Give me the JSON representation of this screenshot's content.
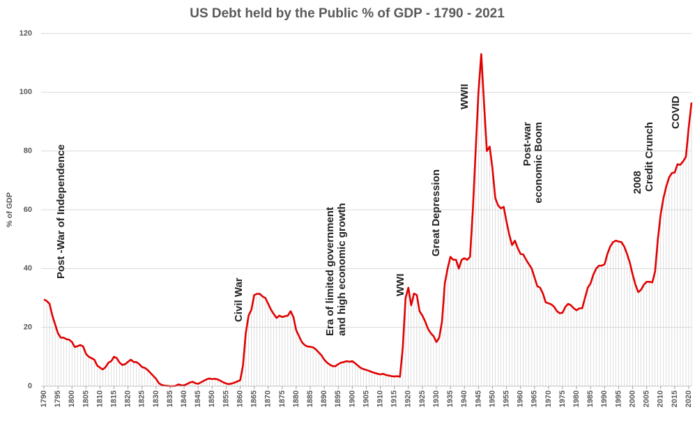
{
  "chart_data": {
    "type": "line",
    "title": "US Debt held by the Public % of GDP - 1790 - 2021",
    "y_label": "% of GDP",
    "x": [
      1790,
      1791,
      1792,
      1793,
      1794,
      1795,
      1796,
      1797,
      1798,
      1799,
      1800,
      1801,
      1802,
      1803,
      1804,
      1805,
      1806,
      1807,
      1808,
      1809,
      1810,
      1811,
      1812,
      1813,
      1814,
      1815,
      1816,
      1817,
      1818,
      1819,
      1820,
      1821,
      1822,
      1823,
      1824,
      1825,
      1826,
      1827,
      1828,
      1829,
      1830,
      1831,
      1832,
      1833,
      1834,
      1835,
      1836,
      1837,
      1838,
      1839,
      1840,
      1841,
      1842,
      1843,
      1844,
      1845,
      1846,
      1847,
      1848,
      1849,
      1850,
      1851,
      1852,
      1853,
      1854,
      1855,
      1856,
      1857,
      1858,
      1859,
      1860,
      1861,
      1862,
      1863,
      1864,
      1865,
      1866,
      1867,
      1868,
      1869,
      1870,
      1871,
      1872,
      1873,
      1874,
      1875,
      1876,
      1877,
      1878,
      1879,
      1880,
      1881,
      1882,
      1883,
      1884,
      1885,
      1886,
      1887,
      1888,
      1889,
      1890,
      1891,
      1892,
      1893,
      1894,
      1895,
      1896,
      1897,
      1898,
      1899,
      1900,
      1901,
      1902,
      1903,
      1904,
      1905,
      1906,
      1907,
      1908,
      1909,
      1910,
      1911,
      1912,
      1913,
      1914,
      1915,
      1916,
      1917,
      1918,
      1919,
      1920,
      1921,
      1922,
      1923,
      1924,
      1925,
      1926,
      1927,
      1928,
      1929,
      1930,
      1931,
      1932,
      1933,
      1934,
      1935,
      1936,
      1937,
      1938,
      1939,
      1940,
      1941,
      1942,
      1943,
      1944,
      1945,
      1946,
      1947,
      1948,
      1949,
      1950,
      1951,
      1952,
      1953,
      1954,
      1955,
      1956,
      1957,
      1958,
      1959,
      1960,
      1961,
      1962,
      1963,
      1964,
      1965,
      1966,
      1967,
      1968,
      1969,
      1970,
      1971,
      1972,
      1973,
      1974,
      1975,
      1976,
      1977,
      1978,
      1979,
      1980,
      1981,
      1982,
      1983,
      1984,
      1985,
      1986,
      1987,
      1988,
      1989,
      1990,
      1991,
      1992,
      1993,
      1994,
      1995,
      1996,
      1997,
      1998,
      1999,
      2000,
      2001,
      2002,
      2003,
      2004,
      2005,
      2006,
      2007,
      2008,
      2009,
      2010,
      2011,
      2012,
      2013,
      2014,
      2015,
      2016,
      2017,
      2018,
      2019,
      2020,
      2021
    ],
    "series": [
      {
        "name": "Debt held by the Public % of GDP",
        "color": "#e00000",
        "values": [
          29.5,
          29,
          28,
          24,
          21,
          18,
          16.5,
          16.5,
          16,
          15.8,
          15,
          13.3,
          13.6,
          14,
          13.5,
          11,
          10,
          9.5,
          9,
          7,
          6.3,
          5.7,
          6.5,
          8,
          8.5,
          10,
          9.5,
          8,
          7.2,
          7.5,
          8.3,
          9,
          8.2,
          8.2,
          7.5,
          6.5,
          6.2,
          5.5,
          4.5,
          3.5,
          2.5,
          1,
          0.4,
          0.2,
          0.1,
          0,
          0,
          0.1,
          0.6,
          0.3,
          0.3,
          0.7,
          1.2,
          1.5,
          1,
          0.8,
          1.3,
          1.8,
          2.3,
          2.6,
          2.4,
          2.5,
          2.3,
          1.8,
          1.3,
          0.9,
          0.7,
          0.9,
          1.2,
          1.6,
          2,
          7,
          18,
          24,
          26,
          31,
          31.4,
          31.4,
          30.5,
          30,
          28,
          26,
          24.5,
          23.2,
          24,
          23.5,
          23.8,
          24,
          25.5,
          23.5,
          19,
          17,
          15,
          14,
          13.5,
          13.4,
          13.2,
          12.5,
          11.5,
          10.5,
          9,
          8,
          7.3,
          6.8,
          6.8,
          7.5,
          8,
          8.2,
          8.5,
          8.3,
          8.5,
          7.8,
          7,
          6.2,
          5.8,
          5.5,
          5.2,
          4.8,
          4.5,
          4.2,
          4,
          4.2,
          3.8,
          3.6,
          3.4,
          3.3,
          3.4,
          3.2,
          13,
          30,
          33.5,
          27.5,
          31.5,
          31,
          25.5,
          24,
          22,
          19.5,
          18,
          17,
          15,
          16.5,
          22,
          35,
          40,
          44,
          43,
          43,
          40,
          43,
          43.5,
          43,
          44,
          60,
          80,
          100,
          113,
          96,
          80,
          81.5,
          74,
          64,
          61.5,
          60.5,
          61,
          56,
          51.5,
          48,
          49.5,
          47,
          45,
          44.8,
          43,
          41.5,
          40,
          37,
          34,
          33.5,
          31.5,
          28.5,
          28.2,
          27.8,
          27,
          25.5,
          24.8,
          25,
          27,
          28,
          27.5,
          26.5,
          25.8,
          26.5,
          26.5,
          30,
          33.5,
          35,
          38,
          40,
          41,
          41,
          41.5,
          45,
          47.5,
          49,
          49.5,
          49.2,
          49,
          47.5,
          45,
          42,
          38,
          34.5,
          32,
          32.8,
          34.5,
          35.5,
          35.5,
          35.3,
          39,
          50,
          58.5,
          64,
          68,
          71,
          72.5,
          72.7,
          75.5,
          75.3,
          76.5,
          78,
          88,
          96.5
        ]
      }
    ],
    "xlim": [
      1789,
      2021
    ],
    "ylim": [
      0,
      120
    ],
    "xticks": [
      1790,
      1795,
      1800,
      1805,
      1810,
      1815,
      1820,
      1825,
      1830,
      1835,
      1840,
      1845,
      1850,
      1855,
      1860,
      1865,
      1870,
      1875,
      1880,
      1885,
      1890,
      1895,
      1900,
      1905,
      1910,
      1915,
      1920,
      1925,
      1930,
      1935,
      1940,
      1945,
      1950,
      1955,
      1960,
      1965,
      1970,
      1975,
      1980,
      1985,
      1990,
      1995,
      2000,
      2005,
      2010,
      2015,
      2020
    ],
    "yticks": [
      0,
      20,
      40,
      60,
      80,
      100,
      120
    ],
    "grid": true,
    "drop_lines": true,
    "annotations": [
      "Post -War of Independence",
      "Civil War",
      "Era of limited government",
      "and high economic growth",
      "WWI",
      "Great Depression",
      "WWII",
      "Post-war",
      "economic Boom",
      "2008",
      "Credit Crunch",
      "COVID"
    ]
  }
}
